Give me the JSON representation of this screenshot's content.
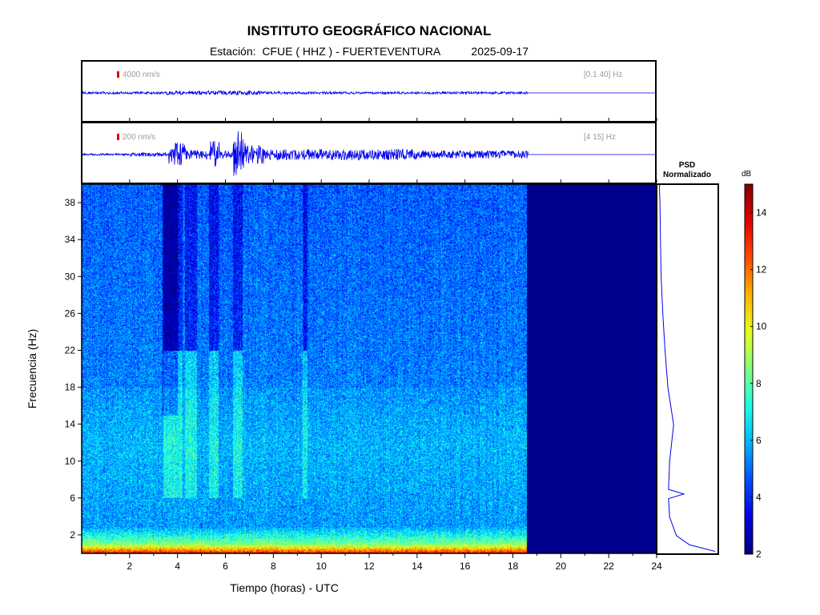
{
  "title": "INSTITUTO GEOGRÁFICO NACIONAL",
  "subtitle": {
    "station_label": "Estación:",
    "station": "CFUE ( HHZ ) - FUERTEVENTURA",
    "date": "2025-09-17"
  },
  "traces": [
    {
      "amplitude_label": "4000 nm/s",
      "band_label": "[0.1 40] Hz"
    },
    {
      "amplitude_label": "200 nm/s",
      "band_label": "[4 15] Hz"
    }
  ],
  "psd": {
    "title_line1": "PSD",
    "title_line2": "Normalizado"
  },
  "colorbar": {
    "unit": "dB",
    "ticks": [
      2,
      4,
      6,
      8,
      10,
      12,
      14
    ],
    "range": [
      2,
      15
    ],
    "colormap": "jet"
  },
  "colors": {
    "trace": "#0000ee",
    "no_data": "#00008f",
    "amplitude_marker": "#e00000"
  },
  "chart_data": {
    "type": "heatmap",
    "xlabel": "Tiempo (horas) - UTC",
    "ylabel": "Frecuencia  (Hz)",
    "x_ticks": [
      2,
      4,
      6,
      8,
      10,
      12,
      14,
      16,
      18,
      20,
      22,
      24
    ],
    "y_ticks": [
      2,
      6,
      10,
      14,
      18,
      22,
      26,
      30,
      34,
      38
    ],
    "xlim": [
      0,
      24
    ],
    "ylim": [
      0,
      40
    ],
    "data_end_hour": 18.6,
    "high_energy_bands_hours": [
      [
        3.4,
        4.2
      ],
      [
        4.3,
        4.8
      ],
      [
        5.3,
        5.7
      ],
      [
        6.3,
        6.7
      ],
      [
        9.2,
        9.4
      ]
    ],
    "psd_profile": {
      "freq_hz": [
        0.3,
        1,
        2,
        4,
        6,
        6.5,
        7,
        10,
        14,
        18,
        22,
        26,
        30,
        34,
        38,
        40
      ],
      "normalized": [
        1.0,
        0.55,
        0.32,
        0.2,
        0.18,
        0.45,
        0.18,
        0.2,
        0.27,
        0.17,
        0.12,
        0.08,
        0.05,
        0.04,
        0.03,
        0.02
      ]
    }
  }
}
